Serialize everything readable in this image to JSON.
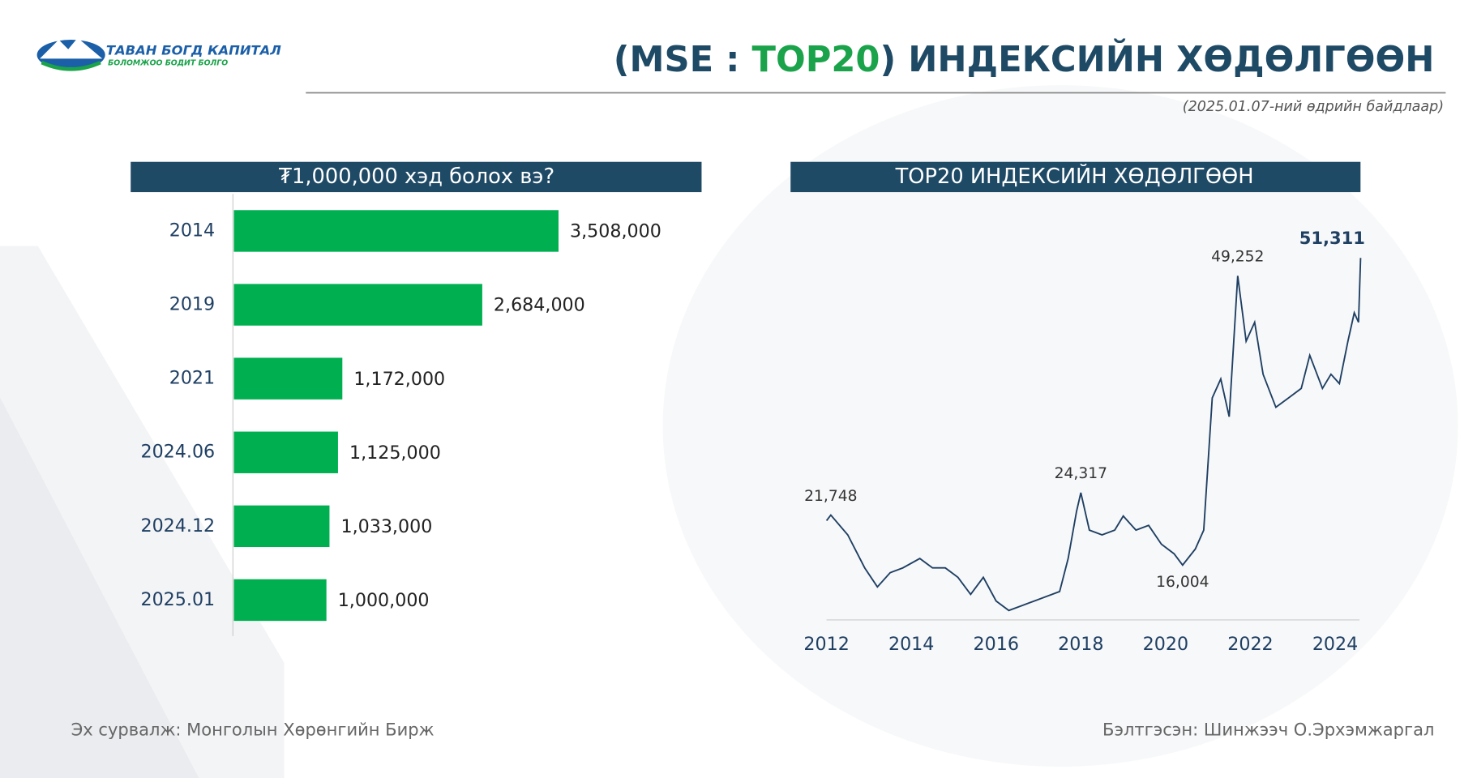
{
  "header": {
    "logo_name": "ТАВАН БОГД КАПИТАЛ",
    "logo_slogan": "БОЛОМЖОО БОДИТ БОЛГО",
    "title_pre": "(MSE : ",
    "title_accent": "TOP20",
    "title_post": ") ИНДЕКСИЙН ХӨДӨЛГӨӨН",
    "subtitle": "(2025.01.07-ний өдрийн байдлаар)"
  },
  "footer": {
    "source": "Эх сурвалж:  Монголын Хөрөнгийн Бирж",
    "author": "Бэлтгэсэн: Шинжээч О.Эрхэмжаргал"
  },
  "chart_data": [
    {
      "type": "barh",
      "title": "₮1,000,000 хэд болох вэ?",
      "categories": [
        "2014",
        "2019",
        "2021",
        "2024.06",
        "2024.12",
        "2025.01"
      ],
      "values": [
        3508000,
        2684000,
        1172000,
        1125000,
        1033000,
        1000000
      ],
      "value_labels": [
        "3,508,000",
        "2,684,000",
        "1,172,000",
        "1,125,000",
        "1,033,000",
        "1,000,000"
      ],
      "color": "#00b050",
      "xlim": [
        0,
        4000000
      ]
    },
    {
      "type": "line",
      "title": "TOP20 ИНДЕКСИЙН ХӨДӨЛГӨӨН",
      "color": "#1f3f63",
      "x": [
        2012.0,
        2012.1,
        2012.5,
        2012.9,
        2013.2,
        2013.5,
        2013.8,
        2014.2,
        2014.5,
        2014.8,
        2015.1,
        2015.4,
        2015.7,
        2016.0,
        2016.3,
        2016.6,
        2016.9,
        2017.2,
        2017.5,
        2017.7,
        2017.9,
        2018.0,
        2018.2,
        2018.5,
        2018.8,
        2019.0,
        2019.3,
        2019.6,
        2019.9,
        2020.2,
        2020.4,
        2020.7,
        2020.9,
        2021.1,
        2021.3,
        2021.5,
        2021.7,
        2021.9,
        2022.1,
        2022.3,
        2022.6,
        2022.9,
        2023.2,
        2023.4,
        2023.7,
        2023.9,
        2024.1,
        2024.3,
        2024.45,
        2024.55,
        2024.6
      ],
      "values": [
        21108,
        21748,
        19480,
        15680,
        13500,
        15130,
        15680,
        16764,
        15680,
        15680,
        14590,
        12640,
        14590,
        11877,
        10790,
        11330,
        11877,
        12420,
        12960,
        16764,
        22200,
        24317,
        20020,
        19480,
        20020,
        21650,
        20020,
        20565,
        18400,
        17300,
        16004,
        17850,
        20020,
        35226,
        37400,
        33054,
        49252,
        41740,
        43910,
        37940,
        34140,
        35226,
        36310,
        40115,
        36310,
        37940,
        36860,
        41740,
        45000,
        43910,
        51311
      ],
      "value_labels": [
        null,
        "21,748",
        null,
        null,
        null,
        null,
        null,
        null,
        null,
        null,
        null,
        null,
        null,
        null,
        null,
        null,
        null,
        null,
        null,
        null,
        null,
        "24,317",
        null,
        null,
        null,
        null,
        null,
        null,
        null,
        null,
        "16,004",
        null,
        null,
        null,
        null,
        null,
        "49,252",
        null,
        null,
        null,
        null,
        null,
        null,
        null,
        null,
        null,
        null,
        null,
        null,
        null,
        "51,311"
      ],
      "xlim": [
        2012,
        2025
      ],
      "ylim": [
        9700,
        51800
      ],
      "xticks": [
        2012,
        2014,
        2016,
        2018,
        2020,
        2022,
        2024
      ]
    }
  ]
}
